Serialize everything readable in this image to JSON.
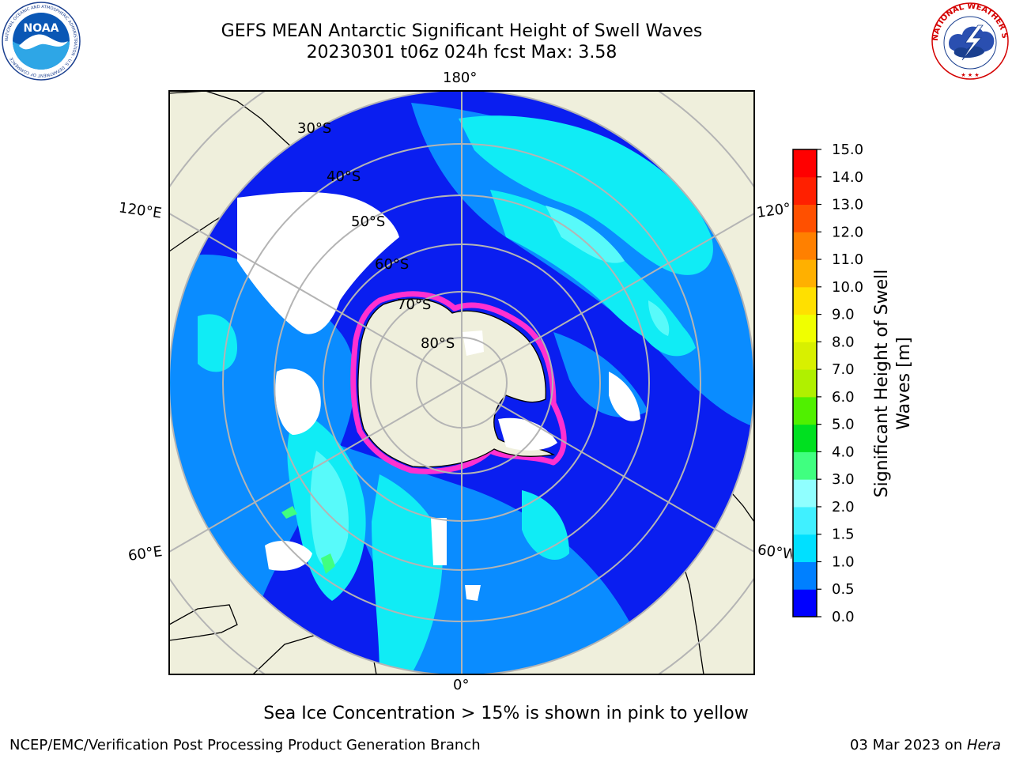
{
  "title": {
    "line1": "GEFS MEAN Antarctic Significant Height of Swell Waves",
    "line2": "20230301 t06z 024h fcst   Max: 3.58"
  },
  "map": {
    "projection": "south-polar-stereographic",
    "latitude_labels": [
      "30°S",
      "40°S",
      "50°S",
      "60°S",
      "70°S",
      "80°S"
    ],
    "longitude_labels": {
      "top": "180°",
      "bottom": "0°",
      "upper_left": "120°E",
      "upper_right": "120°W",
      "lower_left": "60°E",
      "lower_right": "60°W"
    },
    "colors": {
      "land": "#efefdc",
      "ocean_low": "#0a1ef0",
      "ocean_mid": "#0a8cff",
      "ocean_high": "#10ecf5",
      "ocean_higher": "#58fafa",
      "ice_edge": "#ff30d0",
      "grid": "#b4b4b4"
    }
  },
  "colorbar": {
    "title_line1": "Significant Height of Swell",
    "title_line2": "Waves [m]",
    "ticks": [
      "0.0",
      "0.5",
      "1.0",
      "1.5",
      "2.0",
      "3.0",
      "4.0",
      "5.0",
      "6.0",
      "7.0",
      "8.0",
      "9.0",
      "10.0",
      "11.0",
      "12.0",
      "13.0",
      "14.0",
      "15.0"
    ],
    "colors": [
      "#0000ff",
      "#0080ff",
      "#00e0ff",
      "#40f0ff",
      "#90ffff",
      "#40ff80",
      "#00e020",
      "#50f000",
      "#b0f000",
      "#d8f000",
      "#f0ff00",
      "#ffe000",
      "#ffb000",
      "#ff8000",
      "#ff5000",
      "#ff2000",
      "#ff0000"
    ]
  },
  "caption": "Sea Ice Concentration > 15% is shown in pink to yellow",
  "footer": {
    "left": "NCEP/EMC/Verification Post Processing Product Generation Branch",
    "right_date": "03 Mar 2023 on ",
    "right_machine": "Hera"
  },
  "logos": {
    "noaa_text": "NOAA",
    "noaa_ring_text": "NATIONAL OCEANIC AND ATMOSPHERIC ADMINISTRATION · U.S. DEPARTMENT OF COMMERCE",
    "nws_ring_text": "NATIONAL WEATHER SERVICE"
  }
}
